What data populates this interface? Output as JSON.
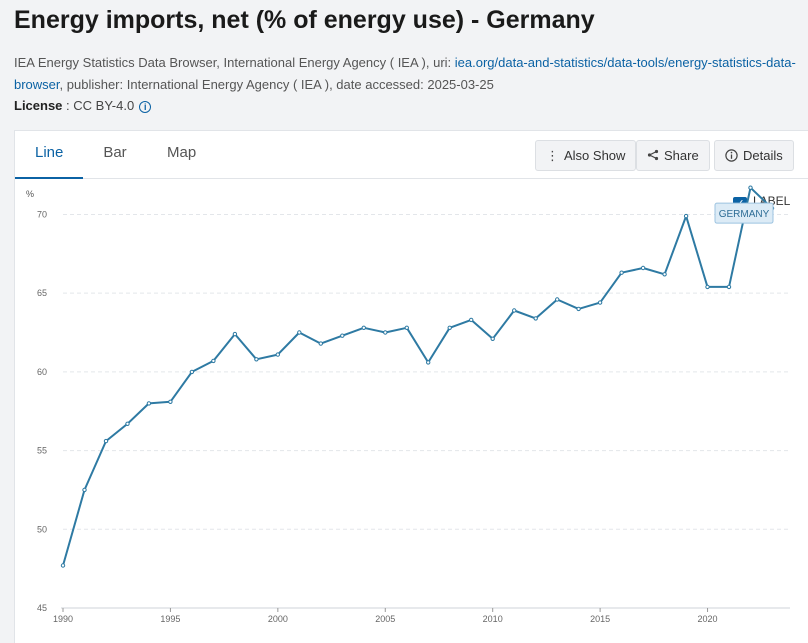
{
  "header": {
    "title": "Energy imports, net (% of energy use) - Germany",
    "source_prefix": "IEA Energy Statistics Data Browser, International Energy Agency ( IEA ), uri: ",
    "source_link": "iea.org/data-and-statistics/data-tools/energy-statistics-data-browser",
    "source_suffix": ", publisher: International Energy Agency ( IEA ), date accessed: 2025-03-25",
    "license_label": "License",
    "license_value": " : CC BY-4.0"
  },
  "tabs": [
    {
      "label": "Line"
    },
    {
      "label": "Bar"
    },
    {
      "label": "Map"
    }
  ],
  "toolbar": {
    "also_show_label": "Also Show",
    "share_label": "Share",
    "details_label": "Details"
  },
  "label_toggle": {
    "label": "LABEL",
    "checked": true
  },
  "chart_data": {
    "type": "line",
    "title": "Energy imports, net (% of energy use) - Germany",
    "ylabel": "%",
    "xlabel": "",
    "ylim": [
      45,
      72
    ],
    "xlim": [
      1990,
      2023
    ],
    "y_ticks": [
      45,
      50,
      55,
      60,
      65,
      70
    ],
    "x_ticks": [
      1990,
      1995,
      2000,
      2005,
      2010,
      2015,
      2020
    ],
    "grid": true,
    "series": [
      {
        "name": "GERMANY",
        "color": "#2e7aa3",
        "x": [
          1990,
          1991,
          1992,
          1993,
          1994,
          1995,
          1996,
          1997,
          1998,
          1999,
          2000,
          2001,
          2002,
          2003,
          2004,
          2005,
          2006,
          2007,
          2008,
          2009,
          2010,
          2011,
          2012,
          2013,
          2014,
          2015,
          2016,
          2017,
          2018,
          2019,
          2020,
          2021,
          2022,
          2023
        ],
        "values": [
          47.7,
          52.5,
          55.6,
          56.7,
          58.0,
          58.1,
          60.0,
          60.7,
          62.4,
          60.8,
          61.1,
          62.5,
          61.8,
          62.3,
          62.8,
          62.5,
          62.8,
          60.6,
          62.8,
          63.3,
          62.1,
          63.9,
          63.4,
          64.6,
          64.0,
          64.4,
          66.3,
          66.6,
          66.2,
          69.9,
          65.4,
          65.4,
          71.7,
          70.4
        ]
      }
    ]
  }
}
